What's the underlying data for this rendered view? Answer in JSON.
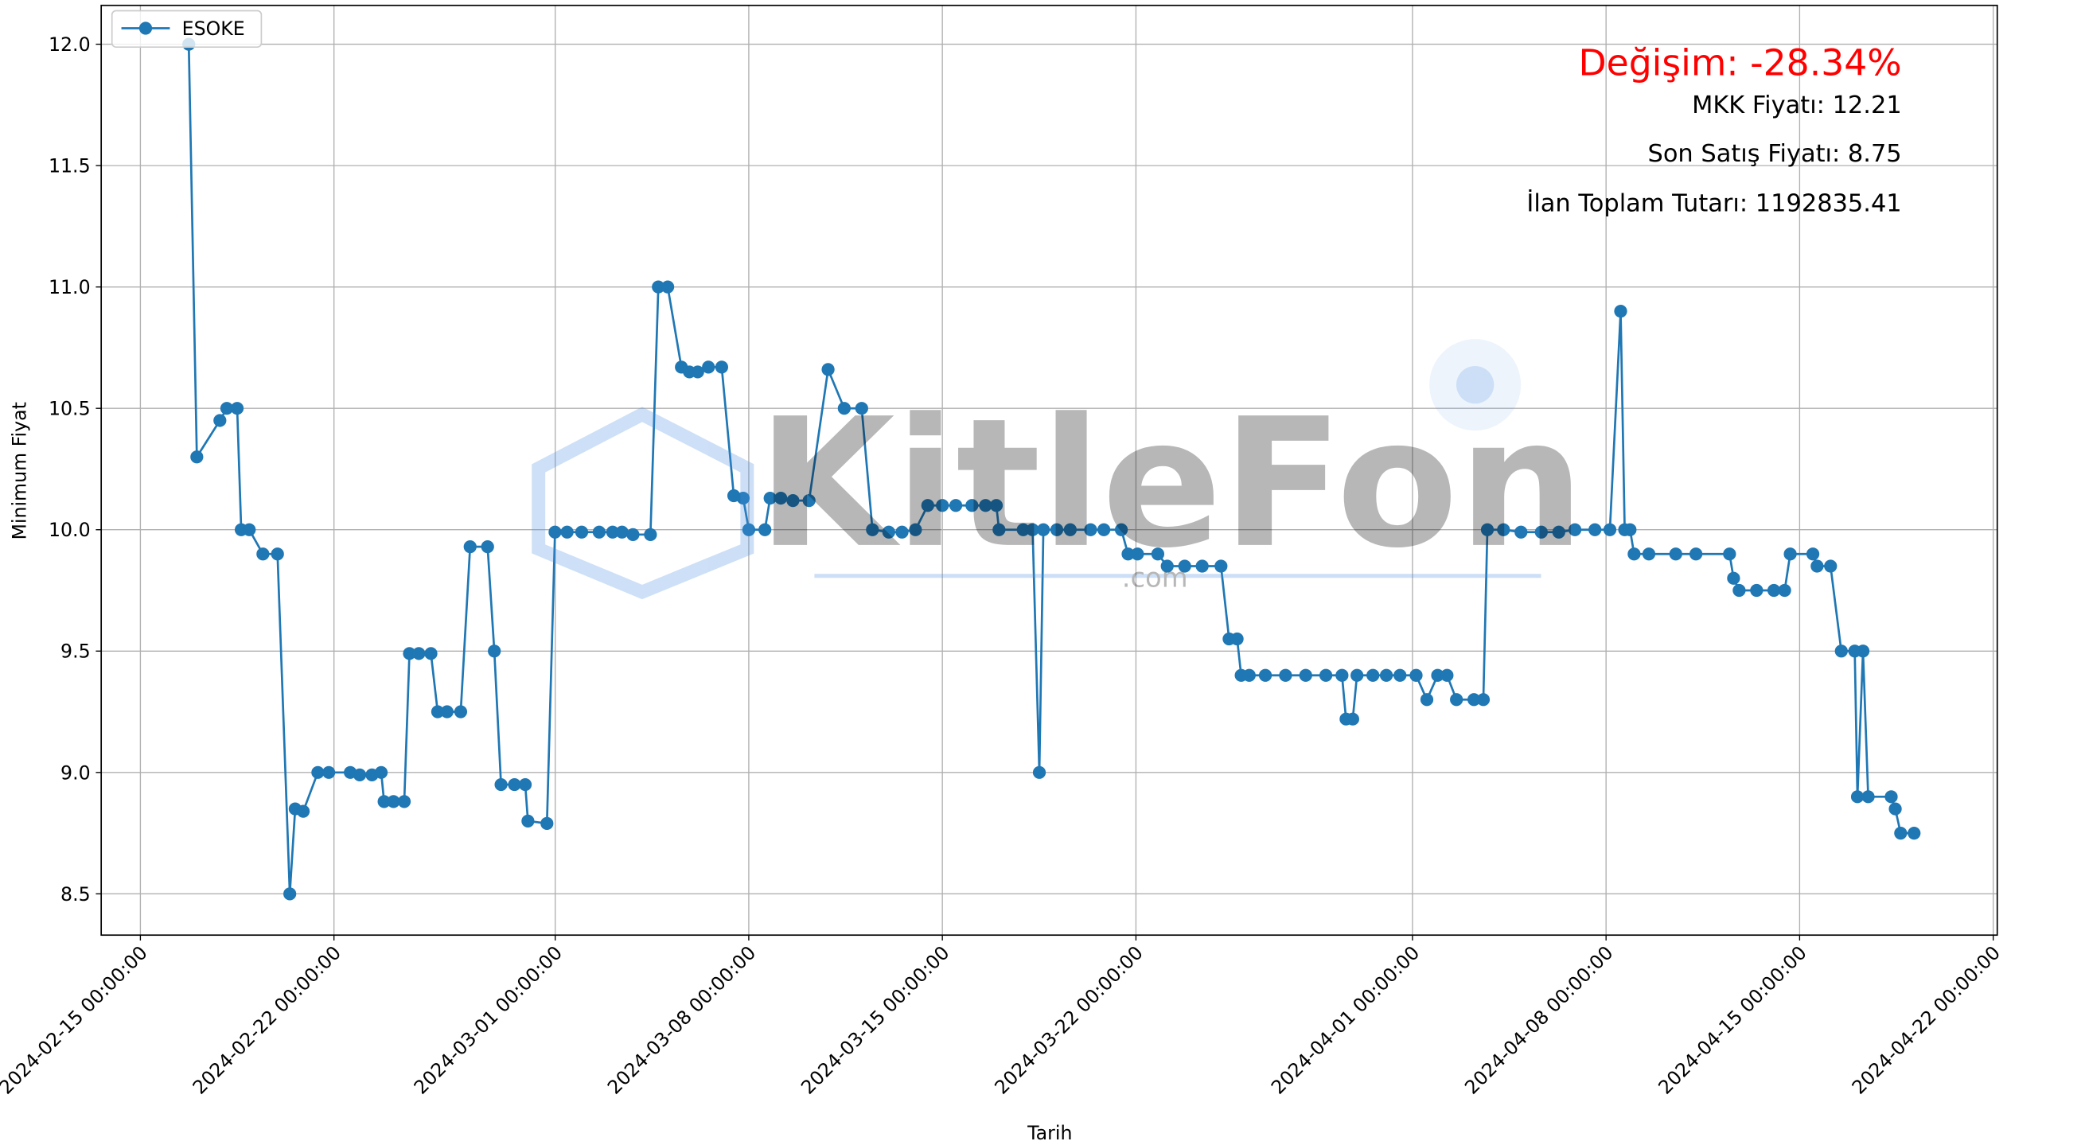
{
  "chart_data": {
    "type": "line",
    "xlabel": "Tarih",
    "ylabel": "Minimum Fiyat",
    "watermark": "KitleFon",
    "watermark_sub": ".com",
    "annotations": [
      "Değişim: -28.34%",
      "MKK Fiyatı: 12.21",
      "Son Satış Fiyatı: 8.75",
      "İlan Toplam Tutarı: 1192835.41"
    ],
    "annotation_colors": [
      "#ff0000",
      "#000000",
      "#000000",
      "#000000"
    ],
    "legend": "upper left",
    "grid": true,
    "xlim": [
      "2024-02-13 14:00:00",
      "2024-04-22 03:30:00"
    ],
    "xticks": [
      "2024-02-15 00:00:00",
      "2024-02-22 00:00:00",
      "2024-03-01 00:00:00",
      "2024-03-08 00:00:00",
      "2024-03-15 00:00:00",
      "2024-03-22 00:00:00",
      "2024-04-01 00:00:00",
      "2024-04-08 00:00:00",
      "2024-04-15 00:00:00",
      "2024-04-22 00:00:00"
    ],
    "ylim": [
      8.33,
      12.16
    ],
    "yticks": [
      8.5,
      {
        "value": 9,
        "label": "9.0"
      },
      9.5,
      {
        "value": 10,
        "label": "10.0"
      },
      10.5,
      {
        "value": 11,
        "label": "11.0"
      },
      11.5,
      {
        "value": 12,
        "label": "12.0"
      }
    ],
    "x": [
      "2024-02-16 18:00:00",
      "2024-02-17 01:00:00",
      "2024-02-17 21:00:00",
      "2024-02-18 03:00:00",
      "2024-02-18 12:00:00",
      "2024-02-18 15:30:00",
      "2024-02-18 22:30:00",
      "2024-02-19 10:20:00",
      "2024-02-19 23:00:00",
      "2024-02-20 09:40:00",
      "2024-02-20 14:20:00",
      "2024-02-20 21:20:00",
      "2024-02-21 10:00:00",
      "2024-02-21 19:30:00",
      "2024-02-22 14:10:00",
      "2024-02-22 22:20:00",
      "2024-02-23 09:00:00",
      "2024-02-23 17:00:00",
      "2024-02-23 19:30:00",
      "2024-02-24 03:40:00",
      "2024-02-24 13:00:00",
      "2024-02-24 17:30:00",
      "2024-02-25 01:40:00",
      "2024-02-25 12:10:00",
      "2024-02-25 18:00:00",
      "2024-02-26 02:10:00",
      "2024-02-26 14:00:00",
      "2024-02-26 22:10:00",
      "2024-02-27 13:20:00",
      "2024-02-27 19:10:00",
      "2024-02-28 01:00:00",
      "2024-02-28 12:40:00",
      "2024-02-28 22:00:00",
      "2024-02-29 00:20:00",
      "2024-02-29 16:50:00",
      "2024-02-29 23:50:00",
      "2024-03-01 10:20:00",
      "2024-03-01 23:00:00",
      "2024-03-02 14:10:00",
      "2024-03-03 01:50:00",
      "2024-03-03 10:00:00",
      "2024-03-03 19:30:00",
      "2024-03-04 10:40:00",
      "2024-03-04 17:30:00",
      "2024-03-05 01:40:00",
      "2024-03-05 13:30:00",
      "2024-03-05 20:30:00",
      "2024-03-06 03:40:00",
      "2024-03-06 13:00:00",
      "2024-03-07 00:30:00",
      "2024-03-07 11:00:00",
      "2024-03-07 19:10:00",
      "2024-03-08 00:00:00",
      "2024-03-08 14:00:00",
      "2024-03-08 18:30:00",
      "2024-03-09 03:50:00",
      "2024-03-09 14:20:00",
      "2024-03-10 04:20:00",
      "2024-03-10 20:50:00",
      "2024-03-11 10:50:00",
      "2024-03-12 02:00:00",
      "2024-03-12 11:20:00",
      "2024-03-13 01:30:00",
      "2024-03-13 13:00:00",
      "2024-03-14 00:40:00",
      "2024-03-14 11:20:00",
      "2024-03-15 00:00:00",
      "2024-03-15 11:40:00",
      "2024-03-16 01:40:00",
      "2024-03-16 13:30:00",
      "2024-03-16 22:50:00",
      "2024-03-17 01:10:00",
      "2024-03-17 22:10:00",
      "2024-03-18 06:20:00",
      "2024-03-18 12:10:00",
      "2024-03-18 15:40:00",
      "2024-03-19 03:20:00",
      "2024-03-19 15:00:00",
      "2024-03-20 08:40:00",
      "2024-03-20 20:10:00",
      "2024-03-21 11:20:00",
      "2024-03-21 17:10:00",
      "2024-03-22 01:20:00",
      "2024-03-22 19:00:00",
      "2024-03-23 03:10:00",
      "2024-03-23 18:20:00",
      "2024-03-24 09:30:00",
      "2024-03-25 01:50:00",
      "2024-03-25 08:50:00",
      "2024-03-25 15:50:00",
      "2024-03-25 19:20:00",
      "2024-03-26 02:20:00",
      "2024-03-26 16:20:00",
      "2024-03-27 09:50:00",
      "2024-03-28 03:20:00",
      "2024-03-28 20:50:00",
      "2024-03-29 10:50:00",
      "2024-03-29 14:20:00",
      "2024-03-29 20:10:00",
      "2024-03-29 23:50:00",
      "2024-03-30 13:40:00",
      "2024-03-31 01:20:00",
      "2024-03-31 13:10:00",
      "2024-04-01 03:10:00",
      "2024-04-01 12:30:00",
      "2024-04-01 21:50:00",
      "2024-04-02 06:00:00",
      "2024-04-02 14:10:00",
      "2024-04-03 05:20:00",
      "2024-04-03 13:30:00",
      "2024-04-03 17:00:00",
      "2024-04-04 07:00:00",
      "2024-04-04 22:10:00",
      "2024-04-05 15:50:00",
      "2024-04-06 07:00:00",
      "2024-04-06 21:00:00",
      "2024-04-07 14:20:00",
      "2024-04-08 03:20:00",
      "2024-04-08 12:40:00",
      "2024-04-08 16:10:00",
      "2024-04-08 20:50:00",
      "2024-04-09 00:20:00",
      "2024-04-09 13:10:00",
      "2024-04-10 12:30:00",
      "2024-04-11 06:00:00",
      "2024-04-12 11:10:00",
      "2024-04-12 14:40:00",
      "2024-04-12 19:30:00",
      "2024-04-13 10:40:00",
      "2024-04-14 01:40:00",
      "2024-04-14 11:00:00",
      "2024-04-14 15:50:00",
      "2024-04-15 11:30:00",
      "2024-04-15 15:10:00",
      "2024-04-16 02:50:00",
      "2024-04-16 12:10:00",
      "2024-04-16 23:50:00",
      "2024-04-17 02:10:00",
      "2024-04-17 07:00:00",
      "2024-04-17 11:30:00",
      "2024-04-18 07:30:00",
      "2024-04-18 11:00:00",
      "2024-04-18 15:40:00",
      "2024-04-19 03:20:00"
    ],
    "series": [
      {
        "name": "ESOKE",
        "color": "#1f77b4",
        "values": [
          12.0,
          10.3,
          10.45,
          10.5,
          10.5,
          10.0,
          10.0,
          9.9,
          9.9,
          8.5,
          8.85,
          8.84,
          9.0,
          9.0,
          9.0,
          8.99,
          8.99,
          9.0,
          8.88,
          8.88,
          8.88,
          9.49,
          9.49,
          9.49,
          9.25,
          9.25,
          9.25,
          9.93,
          9.93,
          9.5,
          8.95,
          8.95,
          8.95,
          8.8,
          8.79,
          9.99,
          9.99,
          9.99,
          9.99,
          9.99,
          9.99,
          9.98,
          9.98,
          11.0,
          11.0,
          10.67,
          10.65,
          10.65,
          10.67,
          10.67,
          10.14,
          10.13,
          10.0,
          10.0,
          10.13,
          10.13,
          10.12,
          10.12,
          10.66,
          10.5,
          10.5,
          10.0,
          9.99,
          9.99,
          10.0,
          10.1,
          10.1,
          10.1,
          10.1,
          10.1,
          10.1,
          10.0,
          10.0,
          10.0,
          9.0,
          10.0,
          10.0,
          10.0,
          10.0,
          10.0,
          10.0,
          9.9,
          9.9,
          9.9,
          9.85,
          9.85,
          9.85,
          9.85,
          9.55,
          9.55,
          9.4,
          9.4,
          9.4,
          9.4,
          9.4,
          9.4,
          9.4,
          9.22,
          9.22,
          9.4,
          9.4,
          9.4,
          9.4,
          9.4,
          9.3,
          9.4,
          9.4,
          9.3,
          9.3,
          9.3,
          10.0,
          10.0,
          9.99,
          9.99,
          9.99,
          10.0,
          10.0,
          10.0,
          10.9,
          10.0,
          10.0,
          9.9,
          9.9,
          9.9,
          9.9,
          9.9,
          9.8,
          9.75,
          9.75,
          9.75,
          9.75,
          9.9,
          9.9,
          9.85,
          9.85,
          9.5,
          9.5,
          8.9,
          9.5,
          8.9,
          8.9,
          8.85,
          8.75,
          8.75
        ]
      }
    ]
  }
}
